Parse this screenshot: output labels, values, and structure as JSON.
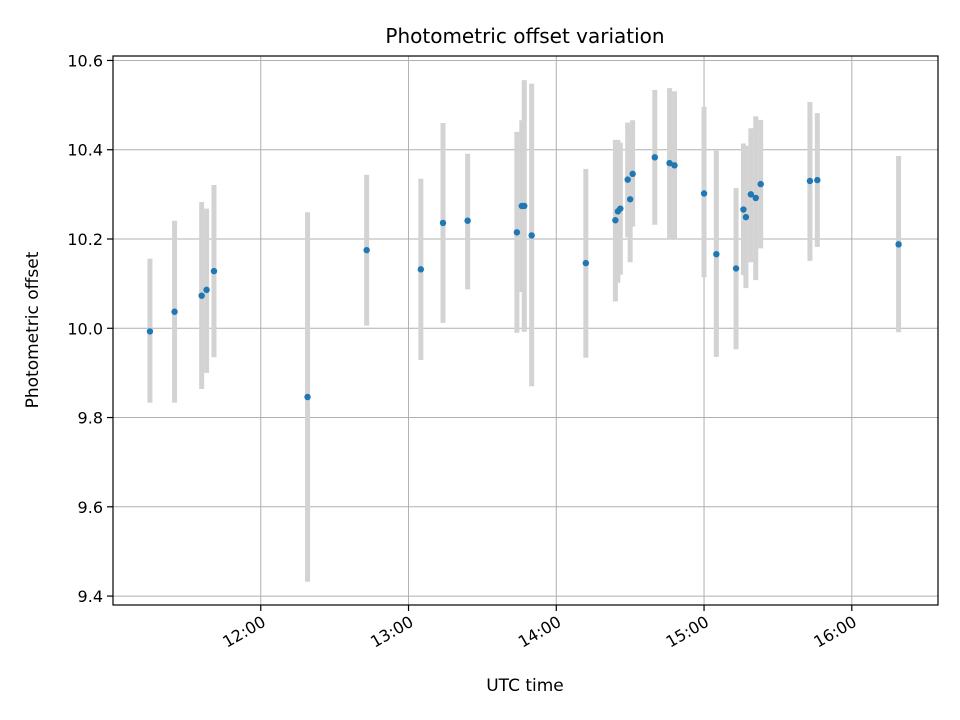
{
  "chart_data": {
    "type": "scatter",
    "title": "Photometric offset variation",
    "xlabel": "UTC time",
    "ylabel": "Photometric offset",
    "xlim": [
      "11:00",
      "16:35"
    ],
    "ylim": [
      9.38,
      10.61
    ],
    "x_ticks": [
      "12:00",
      "13:00",
      "14:00",
      "15:00",
      "16:00"
    ],
    "y_ticks": [
      9.4,
      9.6,
      9.8,
      10.0,
      10.2,
      10.4,
      10.6
    ],
    "grid": true,
    "point_color": "#1f77b4",
    "errorbar_color": "#d3d3d3",
    "points": [
      {
        "x": "11:15",
        "y": 9.993,
        "ylow": 9.833,
        "yhigh": 10.156
      },
      {
        "x": "11:25",
        "y": 10.037,
        "ylow": 9.833,
        "yhigh": 10.241
      },
      {
        "x": "11:36",
        "y": 10.073,
        "ylow": 9.864,
        "yhigh": 10.283
      },
      {
        "x": "11:38",
        "y": 10.086,
        "ylow": 9.9,
        "yhigh": 10.268
      },
      {
        "x": "11:41",
        "y": 10.128,
        "ylow": 9.935,
        "yhigh": 10.321
      },
      {
        "x": "12:19",
        "y": 9.846,
        "ylow": 9.432,
        "yhigh": 10.26
      },
      {
        "x": "12:43",
        "y": 10.175,
        "ylow": 10.006,
        "yhigh": 10.344
      },
      {
        "x": "13:05",
        "y": 10.132,
        "ylow": 9.929,
        "yhigh": 10.335
      },
      {
        "x": "13:14",
        "y": 10.236,
        "ylow": 10.012,
        "yhigh": 10.46
      },
      {
        "x": "13:24",
        "y": 10.241,
        "ylow": 10.087,
        "yhigh": 10.391
      },
      {
        "x": "13:44",
        "y": 10.215,
        "ylow": 9.99,
        "yhigh": 10.44
      },
      {
        "x": "13:46",
        "y": 10.274,
        "ylow": 10.081,
        "yhigh": 10.466
      },
      {
        "x": "13:47",
        "y": 10.274,
        "ylow": 9.992,
        "yhigh": 10.556
      },
      {
        "x": "13:50",
        "y": 10.208,
        "ylow": 9.87,
        "yhigh": 10.548
      },
      {
        "x": "14:12",
        "y": 10.146,
        "ylow": 9.934,
        "yhigh": 10.357
      },
      {
        "x": "14:24",
        "y": 10.242,
        "ylow": 10.06,
        "yhigh": 10.422
      },
      {
        "x": "14:25",
        "y": 10.262,
        "ylow": 10.102,
        "yhigh": 10.422
      },
      {
        "x": "14:26",
        "y": 10.268,
        "ylow": 10.12,
        "yhigh": 10.416
      },
      {
        "x": "14:29",
        "y": 10.333,
        "ylow": 10.204,
        "yhigh": 10.461
      },
      {
        "x": "14:30",
        "y": 10.289,
        "ylow": 10.148,
        "yhigh": 10.431
      },
      {
        "x": "14:31",
        "y": 10.346,
        "ylow": 10.228,
        "yhigh": 10.466
      },
      {
        "x": "14:40",
        "y": 10.383,
        "ylow": 10.232,
        "yhigh": 10.534
      },
      {
        "x": "14:46",
        "y": 10.37,
        "ylow": 10.2,
        "yhigh": 10.538
      },
      {
        "x": "14:48",
        "y": 10.365,
        "ylow": 10.2,
        "yhigh": 10.531
      },
      {
        "x": "15:00",
        "y": 10.302,
        "ylow": 10.114,
        "yhigh": 10.496
      },
      {
        "x": "15:05",
        "y": 10.166,
        "ylow": 9.936,
        "yhigh": 10.398
      },
      {
        "x": "15:13",
        "y": 10.134,
        "ylow": 9.953,
        "yhigh": 10.314
      },
      {
        "x": "15:16",
        "y": 10.266,
        "ylow": 10.119,
        "yhigh": 10.414
      },
      {
        "x": "15:17",
        "y": 10.249,
        "ylow": 10.09,
        "yhigh": 10.409
      },
      {
        "x": "15:19",
        "y": 10.3,
        "ylow": 10.148,
        "yhigh": 10.448
      },
      {
        "x": "15:21",
        "y": 10.292,
        "ylow": 10.108,
        "yhigh": 10.475
      },
      {
        "x": "15:23",
        "y": 10.323,
        "ylow": 10.179,
        "yhigh": 10.467
      },
      {
        "x": "15:43",
        "y": 10.33,
        "ylow": 10.151,
        "yhigh": 10.507
      },
      {
        "x": "15:46",
        "y": 10.332,
        "ylow": 10.182,
        "yhigh": 10.482
      },
      {
        "x": "16:19",
        "y": 10.188,
        "ylow": 9.991,
        "yhigh": 10.386
      }
    ]
  }
}
